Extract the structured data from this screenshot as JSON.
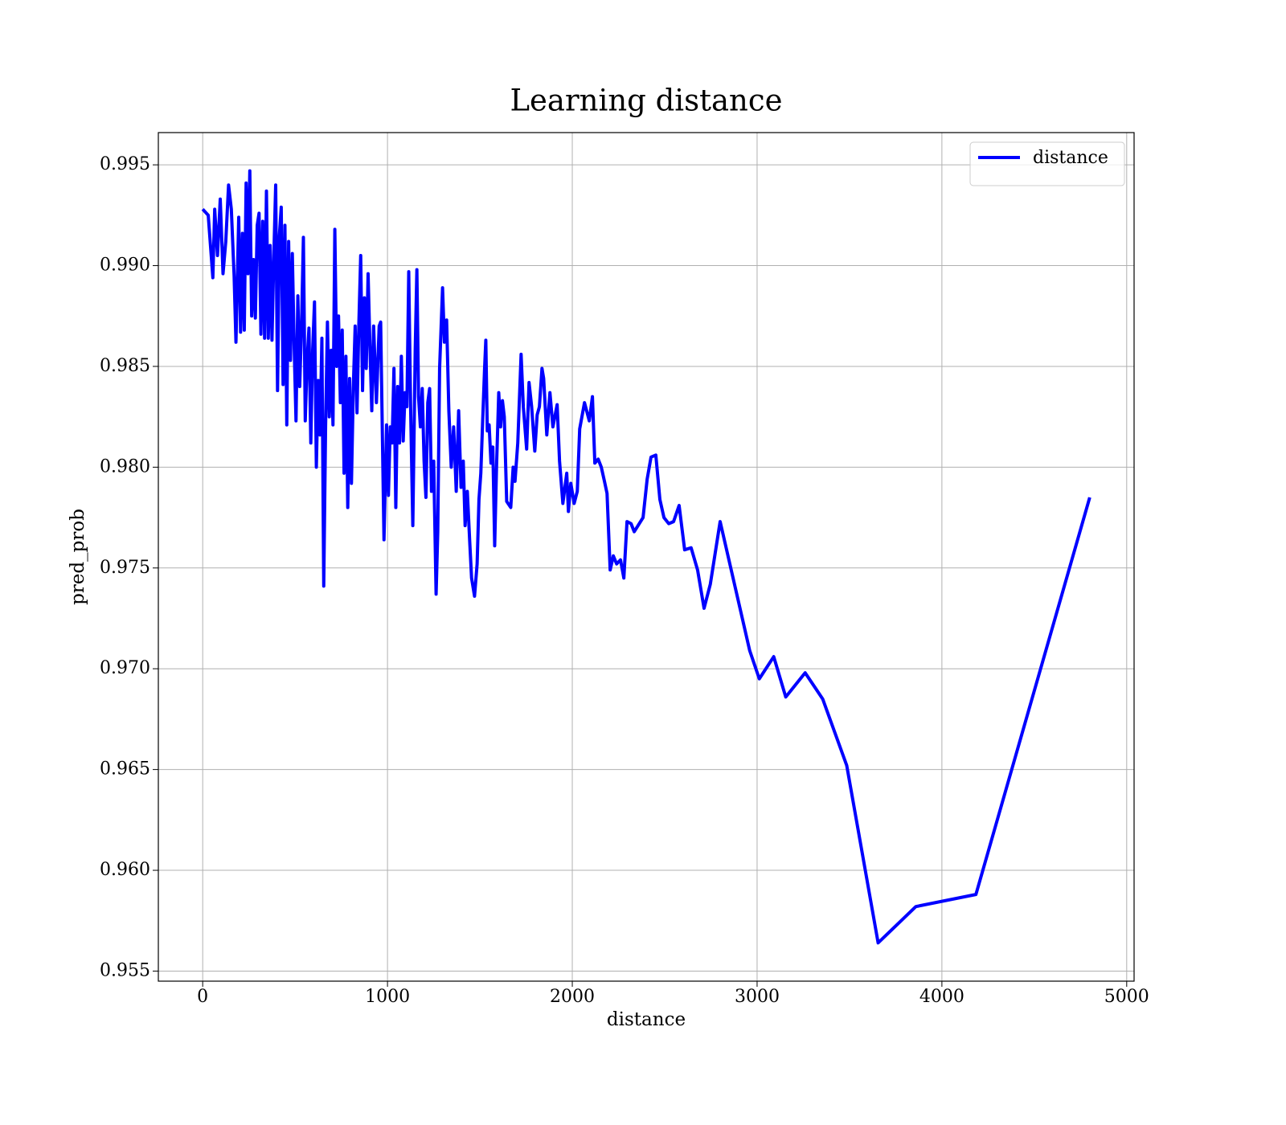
{
  "chart_data": {
    "type": "line",
    "title": "Learning distance",
    "x_label": "distance",
    "y_label": "pred_prob",
    "xlim": [
      -240,
      5040
    ],
    "ylim": [
      0.9545,
      0.9966
    ],
    "xticks": [
      0,
      1000,
      2000,
      3000,
      4000,
      5000
    ],
    "yticks": [
      0.955,
      {
        "value": 0.96,
        "label": "0.960"
      },
      0.965,
      {
        "value": 0.97,
        "label": "0.970"
      },
      0.975,
      {
        "value": 0.98,
        "label": "0.980"
      },
      0.985,
      {
        "value": 0.99,
        "label": "0.990"
      },
      0.995
    ],
    "grid": true,
    "legend": "upper right",
    "x": [
      0,
      30,
      55,
      65,
      80,
      95,
      110,
      125,
      140,
      155,
      170,
      180,
      195,
      205,
      215,
      225,
      235,
      245,
      255,
      265,
      275,
      285,
      295,
      305,
      315,
      325,
      335,
      345,
      355,
      365,
      375,
      385,
      395,
      405,
      415,
      425,
      435,
      445,
      455,
      465,
      475,
      485,
      495,
      505,
      515,
      525,
      535,
      545,
      555,
      565,
      575,
      585,
      595,
      605,
      615,
      625,
      635,
      645,
      655,
      665,
      675,
      685,
      695,
      705,
      715,
      725,
      735,
      745,
      755,
      765,
      775,
      785,
      795,
      805,
      815,
      825,
      835,
      845,
      855,
      865,
      875,
      885,
      895,
      905,
      915,
      925,
      940,
      955,
      963,
      972,
      981,
      995,
      1005,
      1015,
      1025,
      1035,
      1045,
      1055,
      1065,
      1075,
      1085,
      1095,
      1105,
      1115,
      1125,
      1137,
      1150,
      1159,
      1168,
      1178,
      1188,
      1198,
      1208,
      1218,
      1228,
      1238,
      1250,
      1263,
      1272,
      1282,
      1298,
      1308,
      1320,
      1332,
      1345,
      1358,
      1372,
      1385,
      1398,
      1410,
      1420,
      1432,
      1445,
      1455,
      1471,
      1485,
      1495,
      1505,
      1515,
      1525,
      1532,
      1540,
      1550,
      1560,
      1570,
      1580,
      1590,
      1602,
      1612,
      1622,
      1632,
      1645,
      1667,
      1680,
      1690,
      1705,
      1723,
      1735,
      1753,
      1766,
      1780,
      1797,
      1810,
      1822,
      1836,
      1845,
      1862,
      1879,
      1895,
      1918,
      1931,
      1949,
      1970,
      1979,
      1992,
      2010,
      2027,
      2040,
      2066,
      2092,
      2109,
      2122,
      2140,
      2157,
      2174,
      2188,
      2205,
      2222,
      2240,
      2261,
      2279,
      2296,
      2318,
      2335,
      2383,
      2405,
      2426,
      2452,
      2474,
      2496,
      2522,
      2548,
      2578,
      2608,
      2643,
      2678,
      2713,
      2747,
      2800,
      2960,
      3012,
      3090,
      3155,
      3260,
      3355,
      3485,
      3655,
      3859,
      4184,
      4800
    ],
    "series": [
      {
        "name": "distance",
        "color": "#0000ff",
        "values": [
          0.9928,
          0.9925,
          0.9894,
          0.9928,
          0.9905,
          0.9933,
          0.9896,
          0.9912,
          0.994,
          0.9928,
          0.9895,
          0.9862,
          0.9924,
          0.9867,
          0.9916,
          0.9868,
          0.9941,
          0.9896,
          0.9947,
          0.9875,
          0.9903,
          0.9874,
          0.992,
          0.9926,
          0.9866,
          0.9922,
          0.9864,
          0.9937,
          0.9864,
          0.991,
          0.9863,
          0.9905,
          0.994,
          0.9838,
          0.9915,
          0.9929,
          0.9841,
          0.992,
          0.9821,
          0.9912,
          0.9853,
          0.9906,
          0.986,
          0.9823,
          0.9885,
          0.984,
          0.9871,
          0.9914,
          0.9823,
          0.9853,
          0.9869,
          0.9812,
          0.9858,
          0.9882,
          0.98,
          0.9843,
          0.9816,
          0.9864,
          0.9741,
          0.982,
          0.9872,
          0.9825,
          0.9858,
          0.9821,
          0.9918,
          0.985,
          0.9875,
          0.9832,
          0.9868,
          0.9797,
          0.9855,
          0.978,
          0.9844,
          0.9792,
          0.9839,
          0.987,
          0.9827,
          0.9871,
          0.9905,
          0.9838,
          0.9884,
          0.9849,
          0.9896,
          0.986,
          0.9828,
          0.987,
          0.9832,
          0.987,
          0.9872,
          0.9818,
          0.9764,
          0.9821,
          0.9786,
          0.982,
          0.9812,
          0.9849,
          0.978,
          0.984,
          0.9812,
          0.9855,
          0.9813,
          0.9837,
          0.983,
          0.9897,
          0.983,
          0.9771,
          0.9858,
          0.9898,
          0.9835,
          0.982,
          0.9839,
          0.9803,
          0.9785,
          0.9832,
          0.9839,
          0.9788,
          0.9803,
          0.9737,
          0.9768,
          0.9849,
          0.9889,
          0.9862,
          0.9873,
          0.9828,
          0.98,
          0.982,
          0.9788,
          0.9828,
          0.979,
          0.9803,
          0.9771,
          0.9788,
          0.9763,
          0.9745,
          0.9736,
          0.9752,
          0.9784,
          0.9797,
          0.9823,
          0.9848,
          0.9863,
          0.9818,
          0.9821,
          0.9802,
          0.981,
          0.9761,
          0.98,
          0.9837,
          0.982,
          0.9833,
          0.9825,
          0.9783,
          0.978,
          0.98,
          0.9793,
          0.9812,
          0.9856,
          0.983,
          0.9809,
          0.9842,
          0.983,
          0.9808,
          0.9826,
          0.983,
          0.9849,
          0.9844,
          0.9816,
          0.9837,
          0.982,
          0.9831,
          0.9803,
          0.9782,
          0.9797,
          0.9778,
          0.9792,
          0.9782,
          0.9788,
          0.9819,
          0.9832,
          0.9823,
          0.9835,
          0.9802,
          0.9804,
          0.98,
          0.9793,
          0.9787,
          0.9749,
          0.9756,
          0.9752,
          0.9754,
          0.9745,
          0.9773,
          0.9772,
          0.9768,
          0.9775,
          0.9794,
          0.9805,
          0.9806,
          0.9784,
          0.9775,
          0.9772,
          0.9773,
          0.9781,
          0.9759,
          0.976,
          0.9749,
          0.973,
          0.9742,
          0.9773,
          0.9709,
          0.9695,
          0.9706,
          0.9686,
          0.9698,
          0.9685,
          0.9652,
          0.9564,
          0.9582,
          0.9588,
          0.9785
        ]
      }
    ]
  }
}
